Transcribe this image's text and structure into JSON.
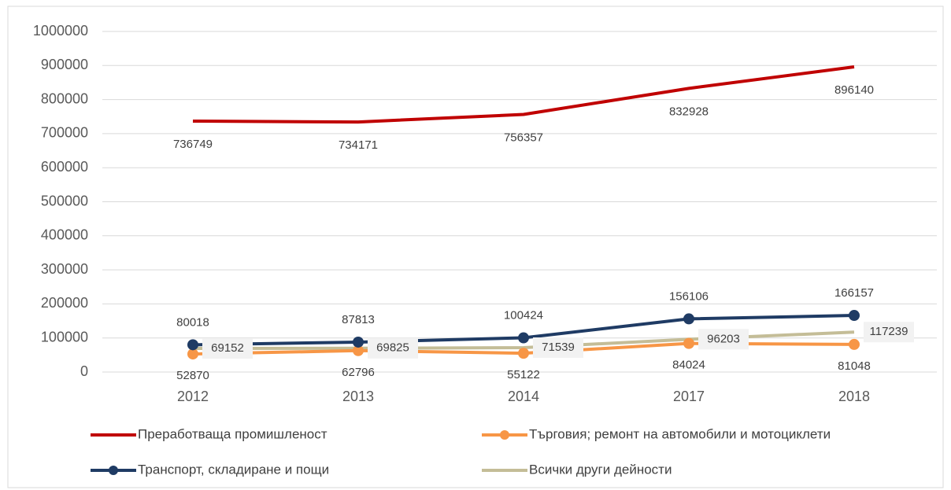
{
  "chart_data": {
    "type": "line",
    "categories": [
      "2012",
      "2013",
      "2014",
      "2017",
      "2018"
    ],
    "series": [
      {
        "name": "Преработваща промишленост",
        "color": "#c00000",
        "values": [
          736749,
          734171,
          756357,
          832928,
          896140
        ]
      },
      {
        "name": "Търговия; ремонт на автомобили и мотоциклети",
        "color": "#f79646",
        "values": [
          52870,
          62796,
          55122,
          84024,
          81048
        ]
      },
      {
        "name": "Транспорт, складиране и пощи",
        "color": "#1f3b64",
        "values": [
          80018,
          87813,
          100424,
          156106,
          166157
        ]
      },
      {
        "name": "Всички други дейности",
        "color": "#c4bd97",
        "values": [
          69152,
          69825,
          71539,
          96203,
          117239
        ]
      }
    ],
    "ylim": [
      0,
      1000000
    ],
    "yticks": [
      0,
      100000,
      200000,
      300000,
      400000,
      500000,
      600000,
      700000,
      800000,
      900000,
      1000000
    ],
    "grid": true
  }
}
